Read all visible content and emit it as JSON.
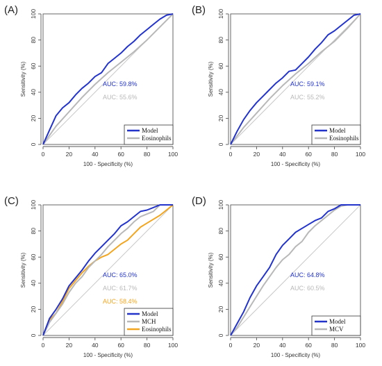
{
  "chart_data": [
    {
      "type": "line",
      "panel_label": "(A)",
      "xlabel": "100 - Specificity (%)",
      "ylabel": "Sensitivity (%)",
      "xlim": [
        0,
        100
      ],
      "ylim": [
        0,
        100
      ],
      "xticks": [
        "0",
        "20",
        "40",
        "60",
        "80",
        "100"
      ],
      "yticks": [
        "0",
        "20",
        "40",
        "60",
        "80",
        "100"
      ],
      "diagonal": true,
      "series": [
        {
          "name": "Model",
          "color": "#2233cc",
          "auc_label": "AUC: 59.8%",
          "x": [
            0,
            5,
            10,
            15,
            20,
            25,
            30,
            35,
            40,
            45,
            50,
            55,
            60,
            65,
            70,
            75,
            80,
            85,
            90,
            95,
            100
          ],
          "y": [
            0,
            11,
            22,
            28,
            32,
            38,
            43,
            47,
            52,
            55,
            62,
            66,
            70,
            75,
            79,
            84,
            88,
            92,
            96,
            99,
            100
          ]
        },
        {
          "name": "Eosinophils",
          "color": "#b8b8b8",
          "auc_label": "AUC: 55.6%",
          "x": [
            0,
            10,
            20,
            30,
            40,
            50,
            60,
            70,
            80,
            90,
            100
          ],
          "y": [
            0,
            14,
            25,
            36,
            46,
            55,
            63,
            71,
            80,
            90,
            100
          ]
        }
      ],
      "legend": "bottom-right"
    },
    {
      "type": "line",
      "panel_label": "(B)",
      "xlabel": "100 - Specificity (%)",
      "ylabel": "Sensitivity (%)",
      "xlim": [
        0,
        100
      ],
      "ylim": [
        0,
        100
      ],
      "xticks": [
        "0",
        "20",
        "40",
        "60",
        "80",
        "100"
      ],
      "yticks": [
        "0",
        "20",
        "40",
        "60",
        "80",
        "100"
      ],
      "diagonal": true,
      "series": [
        {
          "name": "Model",
          "color": "#2233cc",
          "auc_label": "AUC: 59.1%",
          "x": [
            0,
            5,
            10,
            15,
            20,
            25,
            30,
            35,
            40,
            45,
            50,
            55,
            60,
            65,
            70,
            75,
            80,
            85,
            90,
            95,
            100
          ],
          "y": [
            0,
            10,
            19,
            26,
            32,
            37,
            42,
            47,
            51,
            56,
            57,
            62,
            67,
            73,
            78,
            84,
            87,
            91,
            95,
            99,
            100
          ]
        },
        {
          "name": "Eosinophils",
          "color": "#b8b8b8",
          "auc_label": "AUC: 55.2%",
          "x": [
            0,
            10,
            20,
            30,
            40,
            50,
            60,
            70,
            80,
            90,
            100
          ],
          "y": [
            0,
            13,
            24,
            35,
            45,
            54,
            62,
            71,
            79,
            89,
            100
          ]
        }
      ],
      "legend": "bottom-right"
    },
    {
      "type": "line",
      "panel_label": "(C)",
      "xlabel": "100 - Specificity (%)",
      "ylabel": "Sensitivity (%)",
      "xlim": [
        0,
        100
      ],
      "ylim": [
        0,
        100
      ],
      "xticks": [
        "0",
        "20",
        "40",
        "60",
        "80",
        "100"
      ],
      "yticks": [
        "0",
        "20",
        "40",
        "60",
        "80",
        "100"
      ],
      "diagonal": true,
      "series": [
        {
          "name": "Model",
          "color": "#2233cc",
          "auc_label": "AUC: 65.0%",
          "x": [
            0,
            5,
            10,
            15,
            20,
            25,
            30,
            35,
            40,
            45,
            50,
            55,
            60,
            65,
            70,
            75,
            80,
            85,
            90,
            95,
            100
          ],
          "y": [
            0,
            13,
            20,
            28,
            38,
            44,
            50,
            57,
            63,
            68,
            73,
            78,
            84,
            87,
            91,
            95,
            96,
            98,
            100,
            100,
            100
          ]
        },
        {
          "name": "MCH",
          "color": "#b8b8b8",
          "auc_label": "AUC: 61.7%",
          "x": [
            0,
            5,
            10,
            15,
            20,
            25,
            30,
            35,
            40,
            45,
            50,
            55,
            60,
            65,
            70,
            75,
            80,
            85,
            90,
            95,
            100
          ],
          "y": [
            0,
            10,
            17,
            24,
            33,
            40,
            45,
            52,
            57,
            62,
            68,
            73,
            78,
            82,
            87,
            91,
            93,
            95,
            100,
            100,
            100
          ]
        },
        {
          "name": "Eosinophils",
          "color": "#f2a51e",
          "auc_label": "AUC: 58.4%",
          "x": [
            0,
            5,
            10,
            15,
            20,
            25,
            30,
            35,
            40,
            45,
            50,
            55,
            60,
            65,
            70,
            75,
            80,
            85,
            90,
            95,
            100
          ],
          "y": [
            0,
            12,
            17,
            26,
            36,
            42,
            48,
            53,
            57,
            60,
            62,
            66,
            70,
            73,
            78,
            83,
            86,
            89,
            92,
            96,
            100
          ]
        }
      ],
      "legend": "bottom-right"
    },
    {
      "type": "line",
      "panel_label": "(D)",
      "xlabel": "100 - Specificity (%)",
      "ylabel": "Sensitivity (%)",
      "xlim": [
        0,
        100
      ],
      "ylim": [
        0,
        100
      ],
      "xticks": [
        "0",
        "20",
        "40",
        "60",
        "80",
        "100"
      ],
      "yticks": [
        "0",
        "20",
        "40",
        "60",
        "80",
        "100"
      ],
      "diagonal": true,
      "series": [
        {
          "name": "Model",
          "color": "#2233cc",
          "auc_label": "AUC: 64.8%",
          "x": [
            0,
            5,
            10,
            15,
            20,
            25,
            30,
            35,
            40,
            45,
            50,
            55,
            60,
            65,
            70,
            75,
            80,
            85,
            90,
            95,
            100
          ],
          "y": [
            0,
            9,
            18,
            29,
            38,
            45,
            52,
            62,
            69,
            74,
            79,
            82,
            85,
            88,
            90,
            95,
            97,
            100,
            100,
            100,
            100
          ]
        },
        {
          "name": "MCV",
          "color": "#b8b8b8",
          "auc_label": "AUC: 60.5%",
          "x": [
            0,
            5,
            10,
            15,
            20,
            25,
            30,
            35,
            40,
            45,
            50,
            55,
            60,
            65,
            70,
            75,
            80,
            85,
            90,
            95,
            100
          ],
          "y": [
            0,
            6,
            14,
            22,
            30,
            38,
            45,
            52,
            58,
            62,
            68,
            72,
            79,
            84,
            88,
            92,
            96,
            99,
            100,
            100,
            100
          ]
        }
      ],
      "legend": "bottom-right"
    }
  ]
}
